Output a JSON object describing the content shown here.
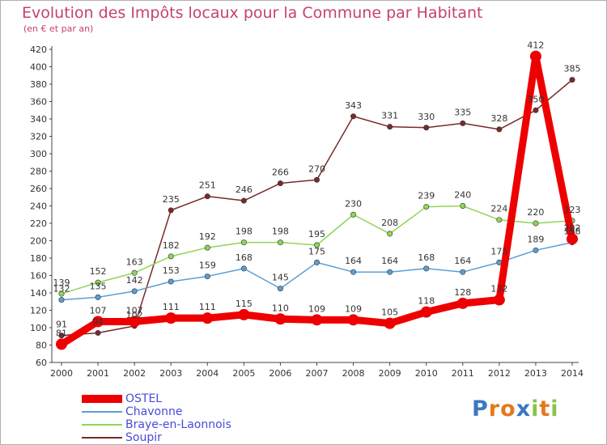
{
  "title": "Evolution des Impôts locaux pour la Commune par Habitant",
  "subtitle": "(en € et par an)",
  "logo_text": "Proxiti",
  "chart_data": {
    "type": "line",
    "x": [
      2000,
      2001,
      2002,
      2003,
      2004,
      2005,
      2006,
      2007,
      2008,
      2009,
      2010,
      2011,
      2012,
      2013,
      2014
    ],
    "ylim": [
      60,
      420
    ],
    "yticks": [
      60,
      80,
      100,
      120,
      140,
      160,
      180,
      200,
      220,
      240,
      260,
      280,
      300,
      320,
      340,
      360,
      380,
      400,
      420
    ],
    "grid": false,
    "legend_position": "bottom-left",
    "series": [
      {
        "name": "OSTEL",
        "color": "#ee0000",
        "values": [
          81,
          107,
          107,
          111,
          111,
          115,
          110,
          109,
          109,
          105,
          118,
          128,
          132,
          412,
          202
        ]
      },
      {
        "name": "Chavonne",
        "color": "#5a9fd4",
        "values": [
          132,
          135,
          142,
          153,
          159,
          168,
          145,
          175,
          164,
          164,
          168,
          164,
          175,
          189,
          198
        ]
      },
      {
        "name": "Braye-en-Laonnois",
        "color": "#8ed65a",
        "values": [
          139,
          152,
          163,
          182,
          192,
          198,
          198,
          195,
          230,
          208,
          239,
          240,
          224,
          220,
          223
        ]
      },
      {
        "name": "Soupir",
        "color": "#7a2a2a",
        "values": [
          91,
          94,
          102,
          235,
          251,
          246,
          266,
          270,
          343,
          331,
          330,
          335,
          328,
          350,
          385
        ]
      }
    ]
  }
}
